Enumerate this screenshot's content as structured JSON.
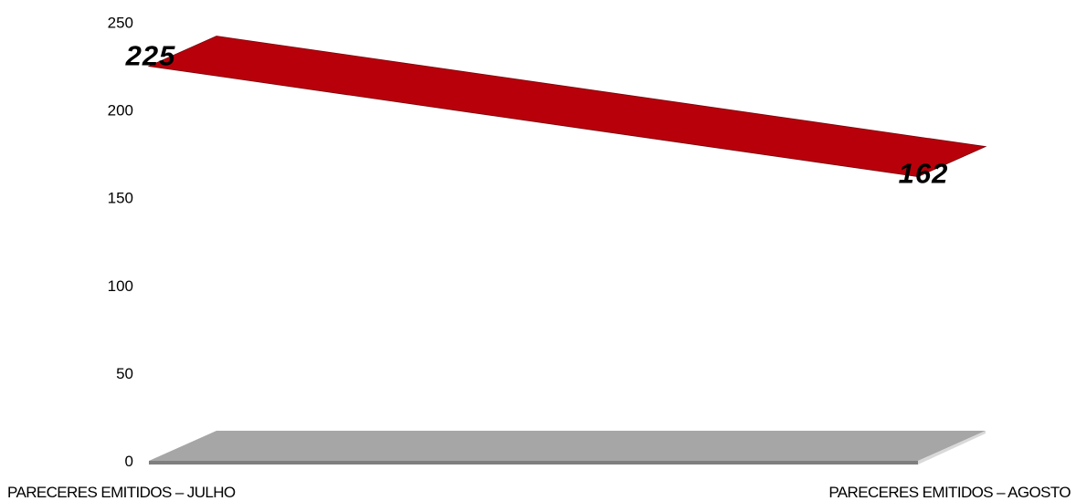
{
  "chart_data": {
    "type": "line",
    "categories": [
      "PARECERES EMITIDOS – JULHO",
      "PARECERES EMITIDOS – AGOSTO"
    ],
    "series": [
      {
        "values": [
          225,
          162
        ],
        "color": "#b8000b"
      }
    ],
    "data_labels": [
      "225",
      "162"
    ],
    "y_ticks": [
      "0",
      "50",
      "100",
      "150",
      "200",
      "250"
    ],
    "ylim": [
      0,
      250
    ],
    "grid": false,
    "legend": "none",
    "floor_color": "#a6a6a6",
    "title": "",
    "xlabel": "",
    "ylabel": ""
  }
}
